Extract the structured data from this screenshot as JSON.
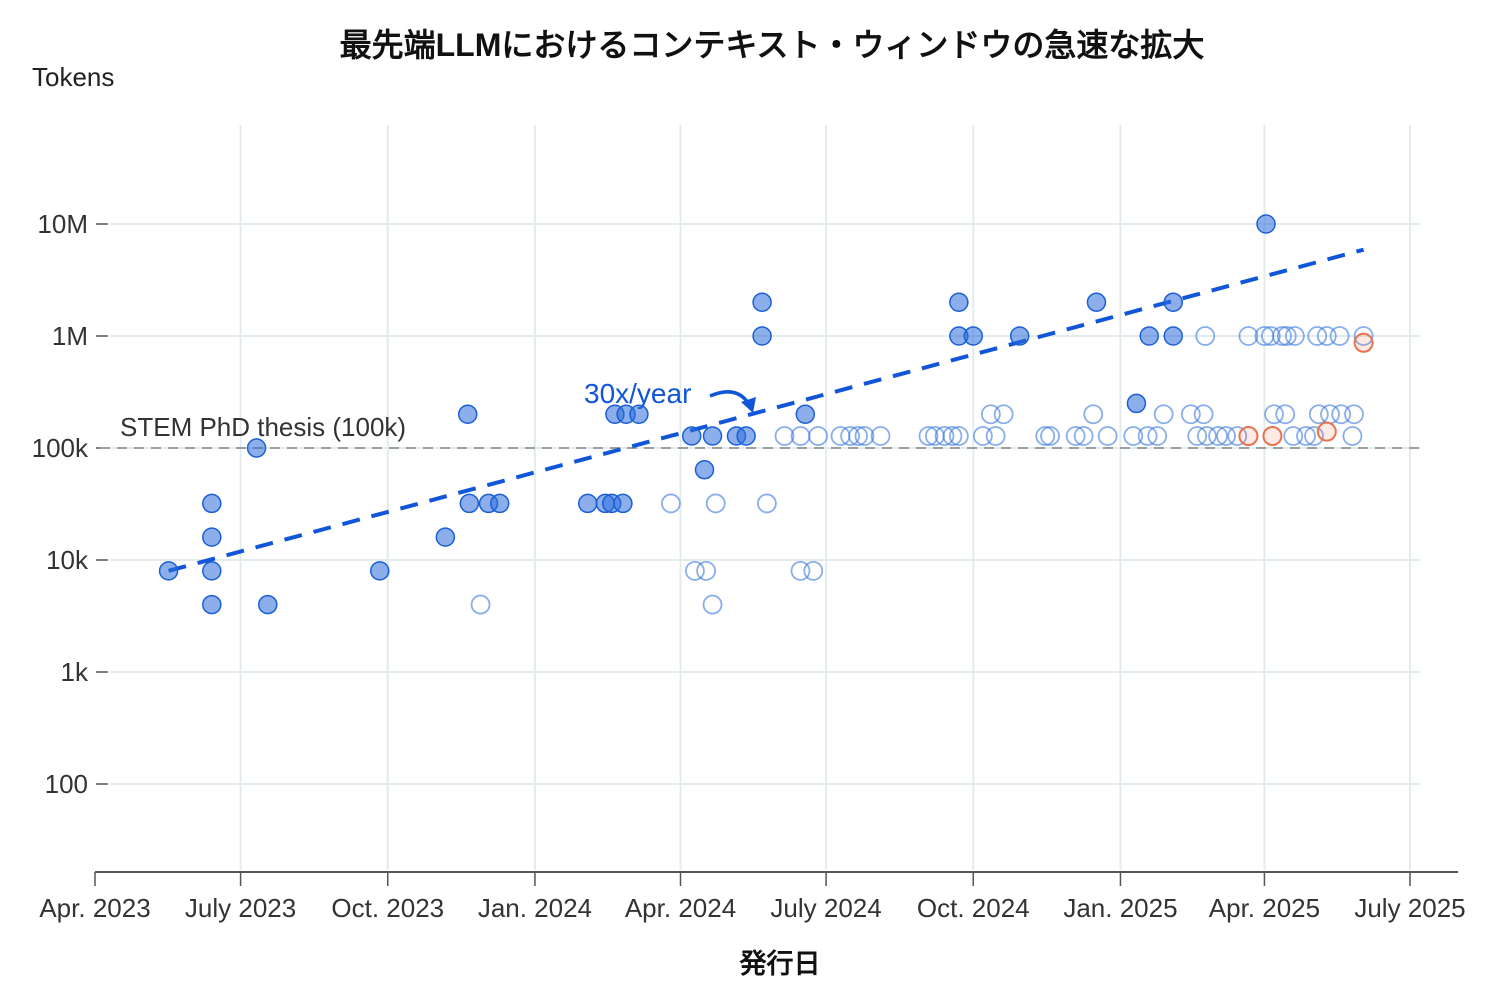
{
  "chart_data": {
    "type": "scatter",
    "title": "最先端LLMにおけるコンテキスト・ウィンドウの急速な拡大",
    "xlabel": "発行日",
    "ylabel": "Tokens",
    "y_scale": "log",
    "ylim": [
      30,
      30000000
    ],
    "xlim": [
      "2023-04-01",
      "2025-07-10"
    ],
    "grid": true,
    "y_ticks": [
      {
        "value": 10000000,
        "label": "10M"
      },
      {
        "value": 1000000,
        "label": "1M"
      },
      {
        "value": 100000,
        "label": "100k"
      },
      {
        "value": 10000,
        "label": "10k"
      },
      {
        "value": 1000,
        "label": "1k"
      },
      {
        "value": 100,
        "label": "100"
      }
    ],
    "x_ticks": [
      {
        "value": "2023-04-01",
        "label": "Apr. 2023"
      },
      {
        "value": "2023-07-01",
        "label": "July 2023"
      },
      {
        "value": "2023-10-01",
        "label": "Oct. 2023"
      },
      {
        "value": "2024-01-01",
        "label": "Jan. 2024"
      },
      {
        "value": "2024-04-01",
        "label": "Apr. 2024"
      },
      {
        "value": "2024-07-01",
        "label": "July 2024"
      },
      {
        "value": "2024-10-01",
        "label": "Oct. 2024"
      },
      {
        "value": "2025-01-01",
        "label": "Jan. 2025"
      },
      {
        "value": "2025-04-01",
        "label": "Apr. 2025"
      },
      {
        "value": "2025-07-01",
        "label": "July 2025"
      }
    ],
    "colors": {
      "filled": "#1a5fd6",
      "open": "#3b78e0",
      "orange": "#e8734f",
      "trend": "#1155d8",
      "reference": "#9aa0a0",
      "grid": "#e3ecec"
    },
    "reference_line": {
      "value": 100000,
      "label": "STEM PhD thesis (100k)"
    },
    "trend": {
      "label": "30x/year",
      "from": [
        "2023-05-17",
        8000
      ],
      "to": [
        "2025-06-02",
        5900000
      ]
    },
    "series": [
      {
        "style": "filled",
        "points": [
          [
            "2023-05-17",
            8000
          ],
          [
            "2023-06-13",
            32000
          ],
          [
            "2023-06-13",
            16000
          ],
          [
            "2023-06-13",
            8000
          ],
          [
            "2023-06-13",
            4000
          ],
          [
            "2023-07-11",
            100000
          ],
          [
            "2023-07-18",
            4000
          ],
          [
            "2023-09-26",
            8000
          ],
          [
            "2023-11-06",
            16000
          ],
          [
            "2023-11-20",
            200000
          ],
          [
            "2023-11-21",
            32000
          ],
          [
            "2023-12-03",
            32000
          ],
          [
            "2023-12-10",
            32000
          ],
          [
            "2024-02-03",
            32000
          ],
          [
            "2024-02-14",
            32000
          ],
          [
            "2024-02-18",
            32000
          ],
          [
            "2024-02-25",
            32000
          ],
          [
            "2024-02-20",
            200000
          ],
          [
            "2024-02-27",
            200000
          ],
          [
            "2024-03-06",
            200000
          ],
          [
            "2024-04-08",
            128000
          ],
          [
            "2024-04-16",
            64000
          ],
          [
            "2024-04-21",
            128000
          ],
          [
            "2024-05-06",
            128000
          ],
          [
            "2024-05-12",
            128000
          ],
          [
            "2024-05-22",
            2000000
          ],
          [
            "2024-05-22",
            1000000
          ],
          [
            "2024-06-18",
            200000
          ],
          [
            "2024-09-22",
            2000000
          ],
          [
            "2024-09-22",
            1000000
          ],
          [
            "2024-10-01",
            1000000
          ],
          [
            "2024-10-30",
            1000000
          ],
          [
            "2024-12-17",
            2000000
          ],
          [
            "2025-01-11",
            250000
          ],
          [
            "2025-01-19",
            1000000
          ],
          [
            "2025-02-03",
            1000000
          ],
          [
            "2025-02-03",
            2000000
          ],
          [
            "2025-04-02",
            10000000
          ]
        ]
      },
      {
        "style": "open",
        "points": [
          [
            "2023-11-28",
            4000
          ],
          [
            "2024-03-26",
            32000
          ],
          [
            "2024-04-23",
            32000
          ],
          [
            "2024-05-25",
            32000
          ],
          [
            "2024-04-10",
            8000
          ],
          [
            "2024-04-17",
            8000
          ],
          [
            "2024-04-21",
            4000
          ],
          [
            "2024-06-15",
            8000
          ],
          [
            "2024-06-23",
            8000
          ],
          [
            "2024-06-05",
            128000
          ],
          [
            "2024-06-15",
            128000
          ],
          [
            "2024-06-26",
            128000
          ],
          [
            "2024-07-10",
            128000
          ],
          [
            "2024-07-16",
            128000
          ],
          [
            "2024-07-21",
            128000
          ],
          [
            "2024-07-25",
            128000
          ],
          [
            "2024-08-04",
            128000
          ],
          [
            "2024-09-03",
            128000
          ],
          [
            "2024-09-07",
            128000
          ],
          [
            "2024-09-13",
            128000
          ],
          [
            "2024-09-18",
            128000
          ],
          [
            "2024-09-22",
            128000
          ],
          [
            "2024-10-07",
            128000
          ],
          [
            "2024-10-15",
            128000
          ],
          [
            "2024-11-15",
            128000
          ],
          [
            "2024-11-18",
            128000
          ],
          [
            "2024-12-04",
            128000
          ],
          [
            "2024-12-09",
            128000
          ],
          [
            "2024-12-24",
            128000
          ],
          [
            "2025-01-09",
            128000
          ],
          [
            "2025-01-18",
            128000
          ],
          [
            "2025-01-24",
            128000
          ],
          [
            "2025-02-18",
            128000
          ],
          [
            "2025-02-24",
            128000
          ],
          [
            "2025-03-03",
            128000
          ],
          [
            "2025-03-08",
            128000
          ],
          [
            "2025-03-15",
            128000
          ],
          [
            "2025-04-19",
            128000
          ],
          [
            "2025-04-27",
            128000
          ],
          [
            "2025-05-02",
            128000
          ],
          [
            "2025-05-26",
            128000
          ],
          [
            "2024-10-12",
            200000
          ],
          [
            "2024-10-20",
            200000
          ],
          [
            "2024-12-15",
            200000
          ],
          [
            "2025-01-28",
            200000
          ],
          [
            "2025-02-14",
            200000
          ],
          [
            "2025-02-22",
            200000
          ],
          [
            "2025-04-07",
            200000
          ],
          [
            "2025-04-14",
            200000
          ],
          [
            "2025-05-05",
            200000
          ],
          [
            "2025-05-12",
            200000
          ],
          [
            "2025-05-19",
            200000
          ],
          [
            "2025-05-27",
            200000
          ],
          [
            "2025-02-23",
            1000000
          ],
          [
            "2025-03-22",
            1000000
          ],
          [
            "2025-04-01",
            1000000
          ],
          [
            "2025-04-05",
            1000000
          ],
          [
            "2025-04-12",
            1000000
          ],
          [
            "2025-04-15",
            1000000
          ],
          [
            "2025-04-20",
            1000000
          ],
          [
            "2025-05-04",
            1000000
          ],
          [
            "2025-05-10",
            1000000
          ],
          [
            "2025-05-18",
            1000000
          ],
          [
            "2025-06-02",
            1000000
          ]
        ]
      },
      {
        "style": "orange",
        "points": [
          [
            "2025-03-22",
            128000
          ],
          [
            "2025-04-06",
            128000
          ],
          [
            "2025-05-10",
            140000
          ],
          [
            "2025-06-02",
            870000
          ]
        ]
      }
    ]
  }
}
